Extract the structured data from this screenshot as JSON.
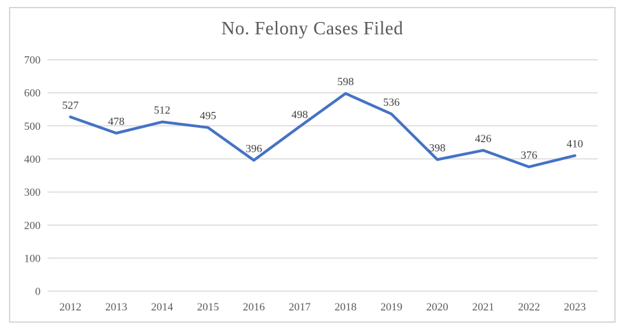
{
  "window": {
    "background": "#ffffff",
    "border_color": "#d8d8d8"
  },
  "chart_data": {
    "type": "line",
    "title": "No. Felony Cases Filed",
    "categories": [
      "2012",
      "2013",
      "2014",
      "2015",
      "2016",
      "2017",
      "2018",
      "2019",
      "2020",
      "2021",
      "2022",
      "2023"
    ],
    "series": [
      {
        "name": "No. Felony Cases Filed",
        "values": [
          527,
          478,
          512,
          495,
          396,
          498,
          598,
          536,
          398,
          426,
          376,
          410
        ],
        "color": "#4472C4",
        "line_width": 4
      }
    ],
    "xlabel": "",
    "ylabel": "",
    "ylim": [
      0,
      700
    ],
    "yticks": [
      0,
      100,
      200,
      300,
      400,
      500,
      600,
      700
    ],
    "grid": true,
    "legend_position": "none",
    "data_labels": "above",
    "styles": {
      "gridline_color": "#d9d9d9",
      "axis_text_color": "#595959",
      "axis_font_size": 16,
      "data_label_color": "#3f3f3f",
      "data_label_font_size": 16,
      "title_color": "#595959"
    }
  }
}
